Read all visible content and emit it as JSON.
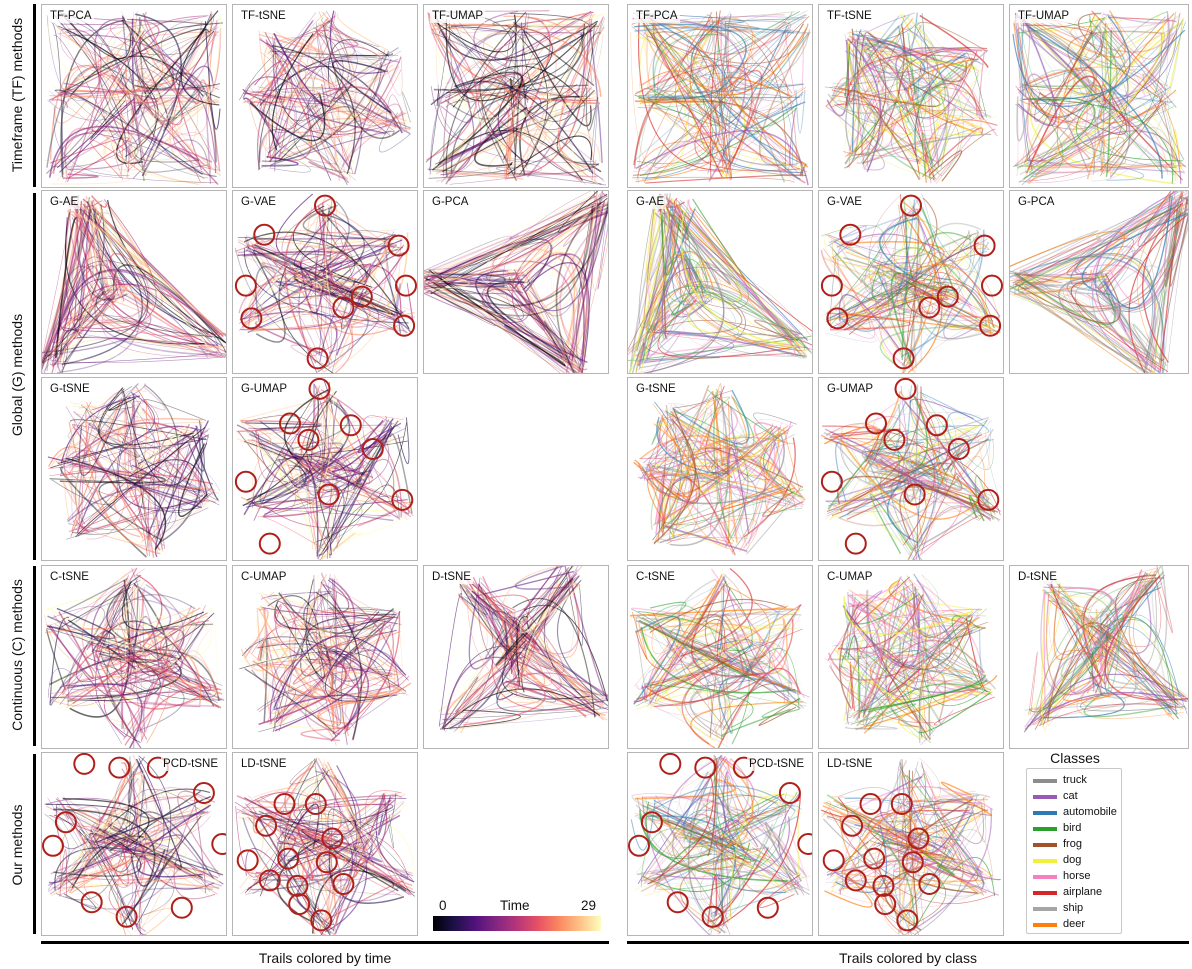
{
  "row_labels": {
    "tf": "Timeframe (TF) methods",
    "global": "Global (G) methods",
    "continuous": "Continuous (C) methods",
    "ours": "Our methods"
  },
  "panels": {
    "tf_pca": "TF-PCA",
    "tf_tsne": "TF-tSNE",
    "tf_umap": "TF-UMAP",
    "g_ae": "G-AE",
    "g_vae": "G-VAE",
    "g_pca": "G-PCA",
    "g_tsne": "G-tSNE",
    "g_umap": "G-UMAP",
    "c_tsne": "C-tSNE",
    "c_umap": "C-UMAP",
    "d_tsne": "D-tSNE",
    "pcd_tsne": "PCD-tSNE",
    "ld_tsne": "LD-tSNE"
  },
  "colorbar": {
    "title": "Time",
    "min": "0",
    "max": "29"
  },
  "legend": {
    "title": "Classes",
    "items": [
      {
        "label": "truck",
        "color": "#8c8c8c"
      },
      {
        "label": "cat",
        "color": "#9b59b6"
      },
      {
        "label": "automobile",
        "color": "#2e7bb4"
      },
      {
        "label": "bird",
        "color": "#2ca02c"
      },
      {
        "label": "frog",
        "color": "#a0522d"
      },
      {
        "label": "dog",
        "color": "#f2f03c"
      },
      {
        "label": "horse",
        "color": "#f57fbf"
      },
      {
        "label": "airplane",
        "color": "#d62728"
      },
      {
        "label": "ship",
        "color": "#a6a6a6"
      },
      {
        "label": "deer",
        "color": "#ff7f0e"
      }
    ]
  },
  "captions": {
    "left": "Trails colored by time",
    "right": "Trails colored by class"
  },
  "palettes": {
    "time": [
      "#000004",
      "#1d1147",
      "#51127c",
      "#822681",
      "#b63679",
      "#e65164",
      "#fb8861",
      "#fec287",
      "#fcfdbf"
    ],
    "circle": "#b0201a"
  }
}
